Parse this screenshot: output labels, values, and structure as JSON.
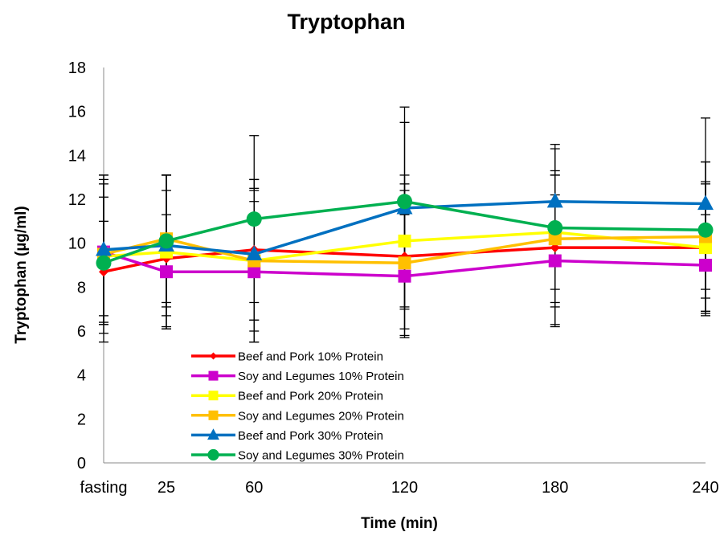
{
  "chart_data": {
    "type": "line",
    "title": "Tryptophan",
    "xlabel": "Time (min)",
    "ylabel": "Tryptophan (µg/ml)",
    "x": [
      0,
      25,
      60,
      120,
      180,
      240
    ],
    "categories": [
      "fasting",
      "25",
      "60",
      "120",
      "180",
      "240"
    ],
    "ylim": [
      0,
      18
    ],
    "yticks": [
      0,
      2,
      4,
      6,
      8,
      10,
      12,
      14,
      16,
      18
    ],
    "grid": false,
    "legend_position": "bottom-left",
    "series": [
      {
        "name": "Beef and Pork 10% Protein",
        "color": "#ff0000",
        "marker": "diamond",
        "values": [
          8.7,
          9.3,
          9.7,
          9.4,
          9.8,
          9.8
        ],
        "errors": [
          2.3,
          3.1,
          3.2,
          3.3,
          3.5,
          3.0
        ]
      },
      {
        "name": "Soy and Legumes 10% Protein",
        "color": "#cc00cc",
        "marker": "square",
        "values": [
          9.6,
          8.7,
          8.7,
          8.5,
          9.2,
          9.0
        ],
        "errors": [
          3.3,
          2.6,
          3.2,
          2.8,
          3.0,
          2.3
        ]
      },
      {
        "name": "Beef and Pork 20% Protein",
        "color": "#ffff00",
        "marker": "square",
        "values": [
          9.4,
          9.6,
          9.2,
          10.1,
          10.5,
          9.8
        ],
        "errors": [
          2.7,
          3.5,
          3.2,
          3.0,
          2.6,
          2.9
        ]
      },
      {
        "name": "Soy and Legumes 20% Protein",
        "color": "#ffc000",
        "marker": "square",
        "values": [
          9.5,
          10.2,
          9.2,
          9.1,
          10.2,
          10.3
        ],
        "errors": [
          3.6,
          2.9,
          3.7,
          3.3,
          2.9,
          3.4
        ]
      },
      {
        "name": "Beef and Pork 30% Protein",
        "color": "#0070c0",
        "marker": "triangle",
        "values": [
          9.7,
          9.9,
          9.5,
          11.6,
          11.9,
          11.8
        ],
        "errors": [
          3.4,
          3.2,
          3.0,
          4.6,
          2.6,
          3.9
        ]
      },
      {
        "name": "Soy and Legumes 30% Protein",
        "color": "#00b050",
        "marker": "circle",
        "values": [
          9.1,
          10.1,
          11.1,
          11.9,
          10.7,
          10.6
        ],
        "errors": [
          3.6,
          3.0,
          3.8,
          3.6,
          3.6,
          3.1
        ]
      }
    ]
  }
}
